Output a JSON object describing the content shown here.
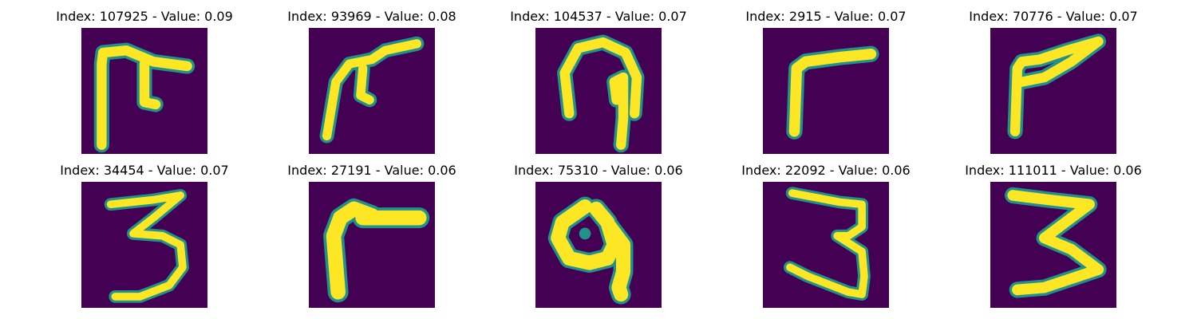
{
  "figure": {
    "colormap": "viridis",
    "colors": {
      "background": "#440154",
      "mid": "#21918c",
      "high": "#fde725",
      "title_text": "#000000"
    },
    "panels": [
      {
        "title": "Index: 107925 - Value: 0.09",
        "glyph": "hook-shape"
      },
      {
        "title": "Index: 93969 - Value: 0.08",
        "glyph": "slanted-hook-shape"
      },
      {
        "title": "Index: 104537 - Value: 0.07",
        "glyph": "arch-shape"
      },
      {
        "title": "Index: 2915 - Value: 0.07",
        "glyph": "angle-shape"
      },
      {
        "title": "Index: 70776 - Value: 0.07",
        "glyph": "angle-shape"
      },
      {
        "title": "Index: 34454 - Value: 0.07",
        "glyph": "digit-3"
      },
      {
        "title": "Index: 27191 - Value: 0.06",
        "glyph": "angle-shape"
      },
      {
        "title": "Index: 75310 - Value: 0.06",
        "glyph": "loop-shape"
      },
      {
        "title": "Index: 22092 - Value: 0.06",
        "glyph": "digit-3"
      },
      {
        "title": "Index: 111011 - Value: 0.06",
        "glyph": "digit-3"
      }
    ]
  }
}
